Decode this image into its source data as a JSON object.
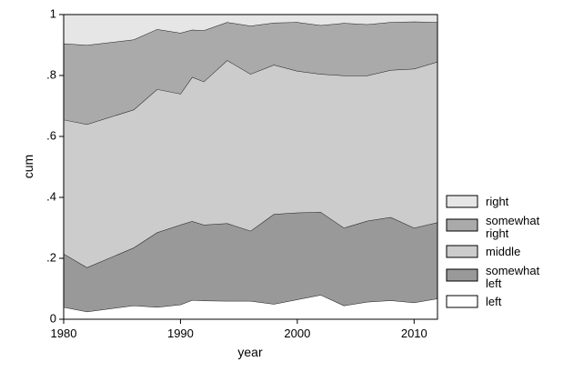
{
  "chart_data": {
    "type": "area",
    "stacked": "cumulative",
    "xlabel": "year",
    "ylabel": "cum",
    "xlim": [
      1980,
      2012
    ],
    "ylim": [
      0,
      1
    ],
    "xticks": [
      1980,
      1990,
      2000,
      2010
    ],
    "yticks": [
      {
        "value": 0,
        "label": "0"
      },
      {
        "value": 0.2,
        "label": ".2"
      },
      {
        "value": 0.4,
        "label": ".4"
      },
      {
        "value": 0.6,
        "label": ".6"
      },
      {
        "value": 0.8,
        "label": ".8"
      },
      {
        "value": 1,
        "label": "1"
      }
    ],
    "x": [
      1980,
      1982,
      1986,
      1988,
      1990,
      1991,
      1992,
      1994,
      1996,
      1998,
      2000,
      2002,
      2004,
      2006,
      2008,
      2010,
      2012
    ],
    "series": [
      {
        "name": "left",
        "color": "#ffffff",
        "cum": [
          0.04,
          0.025,
          0.045,
          0.04,
          0.048,
          0.063,
          0.061,
          0.06,
          0.06,
          0.05,
          0.065,
          0.08,
          0.045,
          0.057,
          0.062,
          0.055,
          0.068
        ]
      },
      {
        "name": "somewhat left",
        "color": "#999999",
        "cum": [
          0.215,
          0.17,
          0.235,
          0.285,
          0.31,
          0.322,
          0.31,
          0.315,
          0.29,
          0.345,
          0.35,
          0.352,
          0.3,
          0.323,
          0.335,
          0.3,
          0.318
        ]
      },
      {
        "name": "middle",
        "color": "#cccccc",
        "cum": [
          0.655,
          0.64,
          0.688,
          0.755,
          0.74,
          0.795,
          0.78,
          0.85,
          0.805,
          0.835,
          0.815,
          0.805,
          0.8,
          0.8,
          0.818,
          0.822,
          0.845
        ]
      },
      {
        "name": "somewhat right",
        "color": "#aaaaaa",
        "cum": [
          0.905,
          0.9,
          0.918,
          0.952,
          0.94,
          0.95,
          0.948,
          0.975,
          0.963,
          0.973,
          0.975,
          0.965,
          0.972,
          0.968,
          0.975,
          0.977,
          0.975
        ]
      },
      {
        "name": "right",
        "color": "#e6e6e6",
        "cum": [
          1,
          1,
          1,
          1,
          1,
          1,
          1,
          1,
          1,
          1,
          1,
          1,
          1,
          1,
          1,
          1,
          1
        ]
      }
    ],
    "legend": {
      "placement": "right",
      "entries": [
        {
          "label": "right",
          "color": "#e6e6e6"
        },
        {
          "label": "somewhat right",
          "color": "#aaaaaa"
        },
        {
          "label": "middle",
          "color": "#cccccc"
        },
        {
          "label": "somewhat left",
          "color": "#999999"
        },
        {
          "label": "left",
          "color": "#ffffff"
        }
      ]
    }
  }
}
